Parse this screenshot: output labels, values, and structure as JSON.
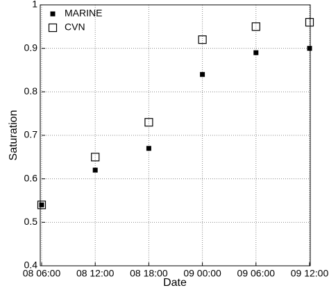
{
  "chart_data": {
    "type": "scatter",
    "x_label": "Date",
    "y_label": "Saturation",
    "categories": [
      "08 06:00",
      "08 12:00",
      "08 18:00",
      "09 00:00",
      "09 06:00",
      "09 12:00"
    ],
    "series": [
      {
        "name": "MARINE",
        "color": "#000000",
        "marker": "square-filled",
        "values": [
          0.54,
          0.62,
          0.67,
          0.84,
          0.89,
          0.9
        ]
      },
      {
        "name": "CVN",
        "color": "#000000",
        "marker": "square-open",
        "values": [
          0.54,
          0.65,
          0.73,
          0.92,
          0.95,
          0.96
        ]
      }
    ],
    "ylim": [
      0.4,
      1
    ],
    "yticks": [
      0.4,
      0.5,
      0.6,
      0.7,
      0.8,
      0.9,
      1
    ],
    "grid": true,
    "legend": "upper left"
  }
}
